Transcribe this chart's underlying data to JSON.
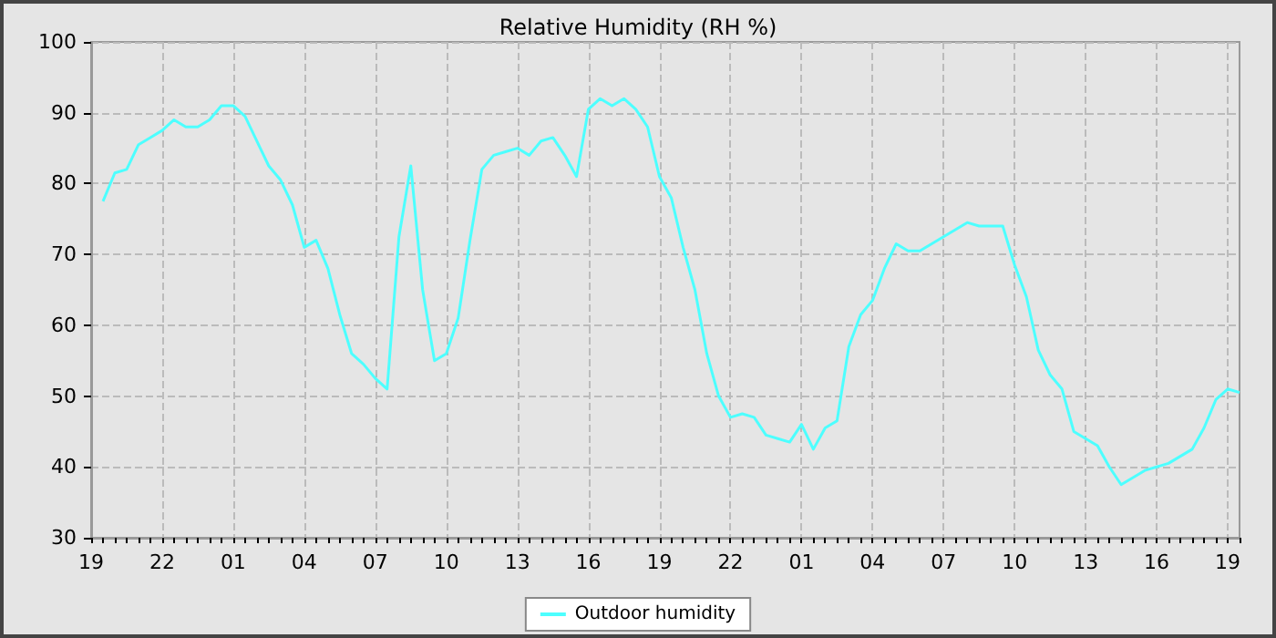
{
  "chart_data": {
    "type": "line",
    "title": "Relative Humidity (RH %)",
    "legend": "bottom",
    "grid": true,
    "marker": "none",
    "line_style": "solid",
    "ylim": [
      30,
      100
    ],
    "yticks": [
      30,
      40,
      50,
      60,
      70,
      80,
      90,
      100
    ],
    "categories": [
      "19",
      null,
      null,
      null,
      null,
      null,
      "22",
      null,
      null,
      null,
      null,
      null,
      "01",
      null,
      null,
      null,
      null,
      null,
      "04",
      null,
      null,
      null,
      null,
      null,
      "07",
      null,
      null,
      null,
      null,
      null,
      "10",
      null,
      null,
      null,
      null,
      null,
      "13",
      null,
      null,
      null,
      null,
      null,
      "16",
      null,
      null,
      null,
      null,
      null,
      "19",
      null,
      null,
      null,
      null,
      null,
      "22",
      null,
      null,
      null,
      null,
      null,
      "01",
      null,
      null,
      null,
      null,
      null,
      "04",
      null,
      null,
      null,
      null,
      null,
      "07",
      null,
      null,
      null,
      null,
      null,
      "10",
      null,
      null,
      null,
      null,
      null,
      "13",
      null,
      null,
      null,
      null,
      null,
      "16",
      null,
      null,
      null,
      null,
      null,
      "19",
      null
    ],
    "series": [
      {
        "name": "Outdoor humidity",
        "color": "#4dffff",
        "values": [
          null,
          77.5,
          81.5,
          82,
          85.5,
          86.5,
          87.5,
          89,
          88,
          88,
          89,
          91,
          91,
          89.5,
          86,
          82.5,
          80.5,
          77,
          71,
          72,
          68,
          61.5,
          56,
          54.5,
          52.5,
          51,
          72.5,
          82.5,
          65,
          55,
          56,
          61,
          72,
          82,
          84,
          84.5,
          85,
          84,
          86,
          86.5,
          84,
          81,
          90.5,
          92,
          91,
          92,
          90.5,
          88,
          81,
          78,
          71,
          65,
          56,
          50,
          47,
          47.5,
          47,
          44.5,
          44,
          43.5,
          46,
          42.5,
          45.5,
          46.5,
          57,
          61.5,
          63.5,
          68,
          71.5,
          70.5,
          70.5,
          71.5,
          72.5,
          73.5,
          74.5,
          74,
          74,
          74,
          68.5,
          64,
          56.5,
          53,
          51,
          45,
          44,
          43,
          40,
          37.5,
          38.5,
          39.5,
          40,
          40.5,
          41.5,
          42.5,
          45.5,
          49.5,
          51,
          50.5
        ]
      }
    ]
  }
}
